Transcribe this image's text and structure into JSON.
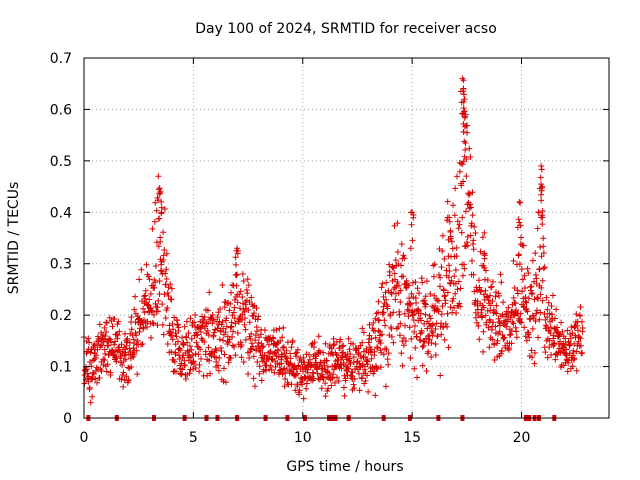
{
  "chart_data": {
    "type": "scatter",
    "title": "Day 100 of 2024, SRMTID for receiver acso",
    "xlabel": "GPS time / hours",
    "ylabel": "SRMTID / TECUs",
    "xlim": [
      0,
      24
    ],
    "ylim": [
      0,
      0.7
    ],
    "xticks": [
      0,
      5,
      10,
      15,
      20
    ],
    "xtick_labels": [
      "0",
      "5",
      "10",
      "15",
      "20"
    ],
    "yticks": [
      0,
      0.1,
      0.2,
      0.3,
      0.4,
      0.5,
      0.6,
      0.7
    ],
    "ytick_labels": [
      "0",
      "0.1",
      "0.2",
      "0.3",
      "0.4",
      "0.5",
      "0.6",
      "0.7"
    ],
    "grid": true,
    "marker": "plus",
    "color": "#d90000",
    "trend": {
      "x": [
        0,
        0.5,
        1,
        1.5,
        2,
        2.5,
        3,
        3.3,
        3.6,
        4,
        4.5,
        5,
        5.5,
        6,
        6.5,
        7,
        7.5,
        8,
        8.5,
        9,
        9.5,
        10,
        10.5,
        11,
        11.5,
        12,
        12.5,
        13,
        13.5,
        14,
        14.5,
        15,
        15.5,
        16,
        16.5,
        17,
        17.2,
        17.4,
        17.6,
        18,
        18.5,
        19,
        19.5,
        20,
        20.3,
        20.6,
        20.9,
        21.2,
        21.5,
        22,
        22.5,
        22.8
      ],
      "y": [
        0.1,
        0.12,
        0.15,
        0.14,
        0.12,
        0.17,
        0.24,
        0.3,
        0.28,
        0.17,
        0.13,
        0.14,
        0.16,
        0.15,
        0.17,
        0.2,
        0.18,
        0.14,
        0.12,
        0.12,
        0.1,
        0.09,
        0.11,
        0.1,
        0.11,
        0.1,
        0.11,
        0.12,
        0.17,
        0.22,
        0.24,
        0.2,
        0.17,
        0.2,
        0.25,
        0.3,
        0.4,
        0.47,
        0.38,
        0.23,
        0.21,
        0.18,
        0.17,
        0.27,
        0.22,
        0.2,
        0.32,
        0.17,
        0.18,
        0.13,
        0.15,
        0.16
      ],
      "spread": [
        0.06,
        0.06,
        0.06,
        0.05,
        0.05,
        0.07,
        0.09,
        0.12,
        0.11,
        0.07,
        0.05,
        0.06,
        0.07,
        0.07,
        0.07,
        0.09,
        0.08,
        0.06,
        0.05,
        0.05,
        0.04,
        0.04,
        0.04,
        0.04,
        0.05,
        0.04,
        0.05,
        0.06,
        0.09,
        0.11,
        0.12,
        0.1,
        0.08,
        0.09,
        0.11,
        0.14,
        0.18,
        0.19,
        0.17,
        0.08,
        0.08,
        0.07,
        0.07,
        0.1,
        0.09,
        0.08,
        0.16,
        0.06,
        0.06,
        0.05,
        0.05,
        0.05
      ]
    },
    "peaks": [
      {
        "x": 3.4,
        "y": 0.47
      },
      {
        "x": 3.5,
        "y": 0.44
      },
      {
        "x": 7.0,
        "y": 0.33
      },
      {
        "x": 15.0,
        "y": 0.4
      },
      {
        "x": 16.7,
        "y": 0.39
      },
      {
        "x": 17.3,
        "y": 0.66
      },
      {
        "x": 17.35,
        "y": 0.64
      },
      {
        "x": 17.4,
        "y": 0.62
      },
      {
        "x": 17.45,
        "y": 0.59
      },
      {
        "x": 18.3,
        "y": 0.36
      },
      {
        "x": 19.9,
        "y": 0.42
      },
      {
        "x": 20.9,
        "y": 0.49
      },
      {
        "x": 20.95,
        "y": 0.45
      }
    ],
    "zero_markers_x": [
      0.2,
      1.5,
      3.2,
      4.6,
      5.6,
      6.1,
      7.0,
      8.3,
      9.3,
      10.1,
      11.2,
      11.35,
      11.5,
      12.1,
      13.7,
      14.9,
      16.2,
      17.3,
      20.2,
      20.35,
      20.6,
      20.8,
      21.5
    ]
  }
}
